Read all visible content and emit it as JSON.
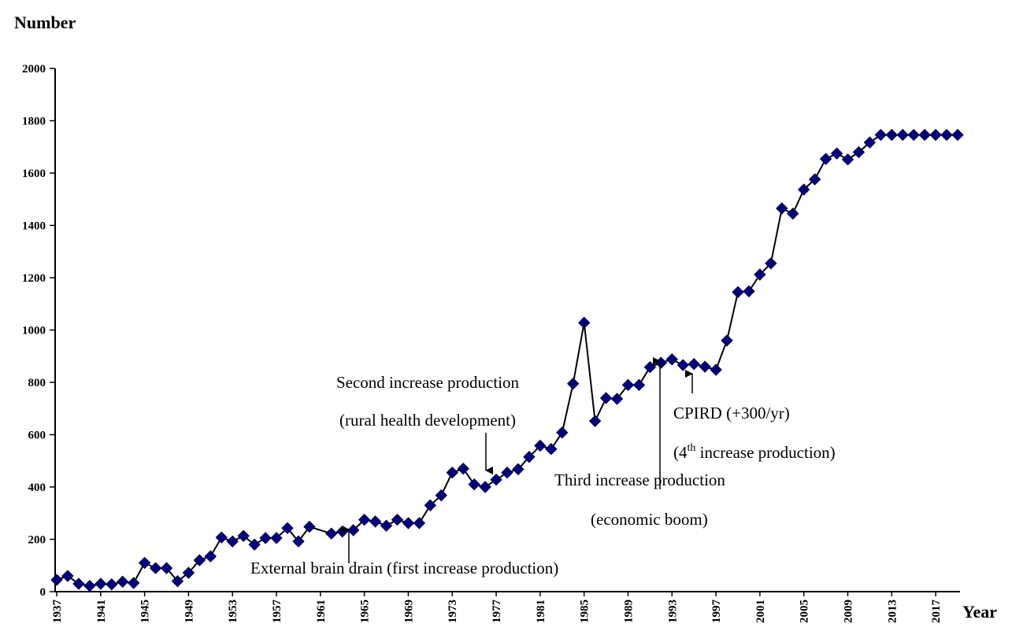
{
  "chart_data": {
    "type": "line",
    "title": "Number",
    "x_label": "Year",
    "x": [
      1937,
      1938,
      1939,
      1940,
      1941,
      1942,
      1943,
      1944,
      1945,
      1946,
      1947,
      1948,
      1949,
      1950,
      1951,
      1952,
      1953,
      1954,
      1955,
      1956,
      1957,
      1958,
      1959,
      1960,
      1962,
      1963,
      1964,
      1965,
      1966,
      1967,
      1968,
      1969,
      1970,
      1971,
      1972,
      1973,
      1974,
      1975,
      1976,
      1977,
      1978,
      1979,
      1980,
      1981,
      1982,
      1983,
      1984,
      1985,
      1986,
      1987,
      1988,
      1989,
      1990,
      1991,
      1992,
      1993,
      1994,
      1995,
      1996,
      1997,
      1998,
      1999,
      2000,
      2001,
      2002,
      2003,
      2004,
      2005,
      2006,
      2007,
      2008,
      2009,
      2010,
      2011,
      2012,
      2013,
      2014,
      2015,
      2016,
      2017,
      2018,
      2019
    ],
    "series": [
      {
        "color": "#000080",
        "line_color": "#000000",
        "values": [
          45,
          60,
          30,
          22,
          30,
          28,
          38,
          33,
          110,
          90,
          90,
          40,
          72,
          120,
          135,
          207,
          192,
          213,
          180,
          205,
          205,
          243,
          192,
          248,
          222,
          230,
          235,
          275,
          268,
          252,
          275,
          262,
          262,
          330,
          368,
          455,
          470,
          410,
          400,
          428,
          455,
          468,
          515,
          558,
          545,
          608,
          795,
          1028,
          652,
          740,
          737,
          790,
          790,
          858,
          875,
          888,
          866,
          870,
          860,
          848,
          960,
          1145,
          1148,
          1212,
          1255,
          1465,
          1445,
          1537,
          1576,
          1654,
          1675,
          1652,
          1680,
          1717,
          1746,
          1746,
          1746,
          1746,
          1746,
          1746,
          1746,
          1746
        ]
      }
    ],
    "xlim": [
      1937,
      2019
    ],
    "xticks": [
      1937,
      1941,
      1945,
      1949,
      1953,
      1957,
      1961,
      1965,
      1969,
      1973,
      1977,
      1981,
      1985,
      1989,
      1993,
      1997,
      2001,
      2005,
      2009,
      2013,
      2017
    ],
    "ylim": [
      0,
      2000
    ],
    "yticks": [
      0,
      200,
      400,
      600,
      800,
      1000,
      1200,
      1400,
      1600,
      1800,
      2000
    ],
    "grid": false,
    "annotations": [
      {
        "text": "Second increase production"
      },
      {
        "text": "(rural health development)"
      },
      {
        "text": "External brain drain (first increase production)"
      },
      {
        "text": "Third increase production"
      },
      {
        "text": "(economic boom)"
      },
      {
        "text": "CPIRD (+300/yr)"
      },
      {
        "parts": [
          "(4",
          "th",
          " increase production)"
        ]
      }
    ]
  }
}
